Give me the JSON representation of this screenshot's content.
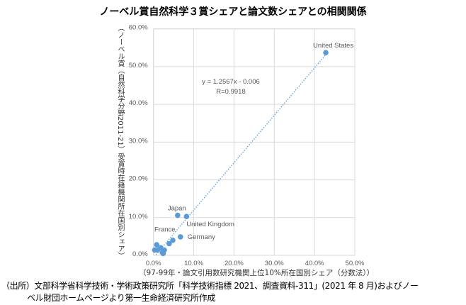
{
  "title": "ノーベル賞自然科学３賞シェアと論文数シェアとの相関関係",
  "source_line1": "（出所）文部科学省科学技術・学術政策研究所「科学技術指標 2021、調査資料-311」(2021 年 8 月)およびノー",
  "source_line2": "ベル財団ホームページより第一生命経済研究所作成",
  "chart_data": {
    "type": "scatter",
    "xlabel": "（97-99年・論文引用数研究機関上位10%所在国別シェア（分数法））",
    "ylabel": "（ノーベル賞（自然科学分野2011-21）受賞時在籍機関所在国別シェア）",
    "xlim": [
      0,
      50
    ],
    "ylim": [
      0,
      60
    ],
    "x_ticks": [
      "0.0%",
      "10.0%",
      "20.0%",
      "30.0%",
      "40.0%",
      "50.0%"
    ],
    "y_ticks": [
      "0.0%",
      "10.0%",
      "20.0%",
      "30.0%",
      "40.0%",
      "50.0%",
      "60.0%"
    ],
    "grid": true,
    "point_color": "#5b9bd5",
    "points": [
      {
        "x": 42.8,
        "y": 53.7,
        "label": "United States"
      },
      {
        "x": 6.0,
        "y": 10.6,
        "label": "Japan"
      },
      {
        "x": 8.2,
        "y": 10.3,
        "label": "United Kingdom"
      },
      {
        "x": 6.7,
        "y": 4.9,
        "label": "Germany"
      },
      {
        "x": 4.8,
        "y": 4.0,
        "label": "France"
      },
      {
        "x": 3.9,
        "y": 3.1,
        "label": ""
      },
      {
        "x": 0.8,
        "y": 2.8,
        "label": ""
      },
      {
        "x": 1.8,
        "y": 2.0,
        "label": ""
      },
      {
        "x": 0.3,
        "y": 1.4,
        "label": ""
      },
      {
        "x": 1.0,
        "y": 1.4,
        "label": ""
      },
      {
        "x": 2.7,
        "y": 1.4,
        "label": ""
      },
      {
        "x": 2.2,
        "y": 0.75,
        "label": ""
      },
      {
        "x": 2.4,
        "y": 0.5,
        "label": ""
      }
    ],
    "trendline": {
      "slope": 1.2567,
      "intercept": -0.006,
      "equation": "y = 1.2567x - 0.006",
      "r": "R=0.9918"
    }
  }
}
